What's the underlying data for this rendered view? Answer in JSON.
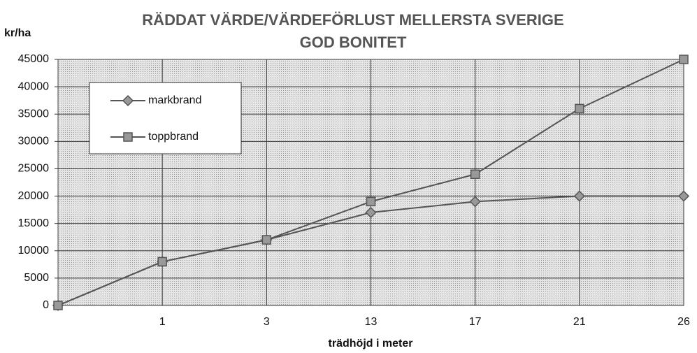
{
  "chart_data": {
    "type": "line",
    "title_lines": [
      "RÄDDAT VÄRDE/VÄRDEFÖRLUST MELLERSTA SVERIGE",
      "GOD BONITET"
    ],
    "y_label": "kr/ha",
    "x_label": "trädhöjd i meter",
    "categories": [
      null,
      "1",
      "3",
      "13",
      "17",
      "21",
      "26"
    ],
    "series": [
      {
        "name": "markbrand",
        "color": "#555555",
        "marker": "diamond",
        "values": [
          0,
          8000,
          12000,
          17000,
          19000,
          20000,
          20000
        ]
      },
      {
        "name": "toppbrand",
        "color": "#555555",
        "marker": "square",
        "values": [
          0,
          8000,
          12000,
          19000,
          24000,
          36000,
          45000
        ]
      }
    ],
    "ylim": [
      0,
      45000
    ],
    "yticks": [
      0,
      5000,
      10000,
      15000,
      20000,
      25000,
      30000,
      35000,
      40000,
      45000
    ],
    "grid": true,
    "legend": "upper left"
  }
}
